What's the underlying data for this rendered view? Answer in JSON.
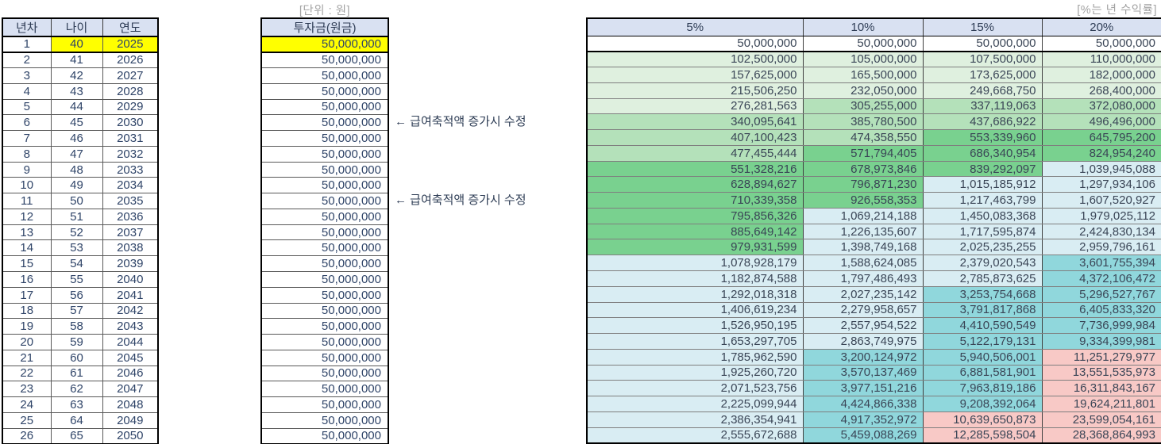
{
  "labels": {
    "unit": "[단위 : 원]",
    "rate": "[%는 년 수익률]"
  },
  "left_table": {
    "headers": [
      "년차",
      "나이",
      "연도"
    ],
    "rows": [
      [
        "1",
        "40",
        "2025"
      ],
      [
        "2",
        "41",
        "2026"
      ],
      [
        "3",
        "42",
        "2027"
      ],
      [
        "4",
        "43",
        "2028"
      ],
      [
        "5",
        "44",
        "2029"
      ],
      [
        "6",
        "45",
        "2030"
      ],
      [
        "7",
        "46",
        "2031"
      ],
      [
        "8",
        "47",
        "2032"
      ],
      [
        "9",
        "48",
        "2033"
      ],
      [
        "10",
        "49",
        "2034"
      ],
      [
        "11",
        "50",
        "2035"
      ],
      [
        "12",
        "51",
        "2036"
      ],
      [
        "13",
        "52",
        "2037"
      ],
      [
        "14",
        "53",
        "2038"
      ],
      [
        "15",
        "54",
        "2039"
      ],
      [
        "16",
        "55",
        "2040"
      ],
      [
        "17",
        "56",
        "2041"
      ],
      [
        "18",
        "57",
        "2042"
      ],
      [
        "19",
        "58",
        "2043"
      ],
      [
        "20",
        "59",
        "2044"
      ],
      [
        "21",
        "60",
        "2045"
      ],
      [
        "22",
        "61",
        "2046"
      ],
      [
        "23",
        "62",
        "2047"
      ],
      [
        "24",
        "63",
        "2048"
      ],
      [
        "25",
        "64",
        "2049"
      ],
      [
        "26",
        "65",
        "2050"
      ]
    ],
    "highlight_row": 0,
    "highlight_cols": [
      1,
      2
    ]
  },
  "investment_table": {
    "header": "투자금(원금)",
    "values": [
      "50,000,000",
      "50,000,000",
      "50,000,000",
      "50,000,000",
      "50,000,000",
      "50,000,000",
      "50,000,000",
      "50,000,000",
      "50,000,000",
      "50,000,000",
      "50,000,000",
      "50,000,000",
      "50,000,000",
      "50,000,000",
      "50,000,000",
      "50,000,000",
      "50,000,000",
      "50,000,000",
      "50,000,000",
      "50,000,000",
      "50,000,000",
      "50,000,000",
      "50,000,000",
      "50,000,000",
      "50,000,000",
      "50,000,000"
    ],
    "highlight_row": 0
  },
  "annotations": [
    {
      "row": 6,
      "text": "← 급여축적액 증가시 수정"
    },
    {
      "row": 11,
      "text": "← 급여축적액 증가시 수정"
    }
  ],
  "returns_table": {
    "headers": [
      "5%",
      "10%",
      "15%",
      "20%"
    ],
    "rows": [
      [
        "50,000,000",
        "50,000,000",
        "50,000,000",
        "50,000,000"
      ],
      [
        "102,500,000",
        "105,000,000",
        "107,500,000",
        "110,000,000"
      ],
      [
        "157,625,000",
        "165,500,000",
        "173,625,000",
        "182,000,000"
      ],
      [
        "215,506,250",
        "232,050,000",
        "249,668,750",
        "268,400,000"
      ],
      [
        "276,281,563",
        "305,255,000",
        "337,119,063",
        "372,080,000"
      ],
      [
        "340,095,641",
        "385,780,500",
        "437,686,922",
        "496,496,000"
      ],
      [
        "407,100,423",
        "474,358,550",
        "553,339,960",
        "645,795,200"
      ],
      [
        "477,455,444",
        "571,794,405",
        "686,340,954",
        "824,954,240"
      ],
      [
        "551,328,216",
        "678,973,846",
        "839,292,097",
        "1,039,945,088"
      ],
      [
        "628,894,627",
        "796,871,230",
        "1,015,185,912",
        "1,297,934,106"
      ],
      [
        "710,339,358",
        "926,558,353",
        "1,217,463,799",
        "1,607,520,927"
      ],
      [
        "795,856,326",
        "1,069,214,188",
        "1,450,083,368",
        "1,979,025,112"
      ],
      [
        "885,649,142",
        "1,226,135,607",
        "1,717,595,874",
        "2,424,830,134"
      ],
      [
        "979,931,599",
        "1,398,749,168",
        "2,025,235,255",
        "2,959,796,161"
      ],
      [
        "1,078,928,179",
        "1,588,624,085",
        "2,379,020,543",
        "3,601,755,394"
      ],
      [
        "1,182,874,588",
        "1,797,486,493",
        "2,785,873,625",
        "4,372,106,472"
      ],
      [
        "1,292,018,318",
        "2,027,235,142",
        "3,253,754,668",
        "5,296,527,767"
      ],
      [
        "1,406,619,234",
        "2,279,958,657",
        "3,791,817,868",
        "6,405,833,320"
      ],
      [
        "1,526,950,195",
        "2,557,954,522",
        "4,410,590,549",
        "7,736,999,984"
      ],
      [
        "1,653,297,705",
        "2,863,749,975",
        "5,122,179,131",
        "9,334,399,981"
      ],
      [
        "1,785,962,590",
        "3,200,124,972",
        "5,940,506,001",
        "11,251,279,977"
      ],
      [
        "1,925,260,720",
        "3,570,137,469",
        "6,881,581,901",
        "13,551,535,973"
      ],
      [
        "2,071,523,756",
        "3,977,151,216",
        "7,963,819,186",
        "16,311,843,167"
      ],
      [
        "2,225,099,944",
        "4,424,866,338",
        "9,208,392,064",
        "19,624,211,801"
      ],
      [
        "2,386,354,941",
        "4,917,352,972",
        "10,639,650,873",
        "23,599,054,161"
      ],
      [
        "2,555,672,688",
        "5,459,088,269",
        "12,285,598,504",
        "28,368,864,993"
      ]
    ],
    "bands": [
      {
        "max": 100000000,
        "color": "#ffffff"
      },
      {
        "max": 300000000,
        "color": "#dff0df"
      },
      {
        "max": 500000000,
        "color": "#b4e1ba"
      },
      {
        "max": 1000000000,
        "color": "#79d18f"
      },
      {
        "max": 3000000000,
        "color": "#d9edf3"
      },
      {
        "max": 10000000000,
        "color": "#90d7dc"
      },
      {
        "max": null,
        "color": "#f8c9c6"
      }
    ]
  },
  "colors": {
    "header_bg": "#d9e1f2",
    "highlight_yellow": "#ffff00"
  }
}
